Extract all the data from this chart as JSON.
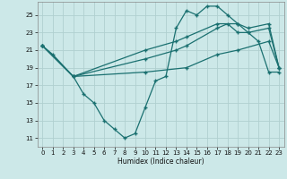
{
  "title": "",
  "xlabel": "Humidex (Indice chaleur)",
  "xlim": [
    -0.5,
    23.5
  ],
  "ylim": [
    10,
    26.5
  ],
  "yticks": [
    11,
    13,
    15,
    17,
    19,
    21,
    23,
    25
  ],
  "xticks": [
    0,
    1,
    2,
    3,
    4,
    5,
    6,
    7,
    8,
    9,
    10,
    11,
    12,
    13,
    14,
    15,
    16,
    17,
    18,
    19,
    20,
    21,
    22,
    23
  ],
  "bg_color": "#cce8e8",
  "line_color": "#1a7070",
  "grid_color": "#b0d0d0",
  "lines": [
    {
      "x": [
        0,
        1,
        3,
        4,
        5,
        6,
        7,
        8,
        9,
        10,
        11,
        12,
        13,
        14,
        15,
        16,
        17,
        18,
        19,
        20,
        21,
        22,
        23
      ],
      "y": [
        21.5,
        20.5,
        18,
        16,
        15,
        13,
        12,
        11,
        11.5,
        14.5,
        17.5,
        18,
        23.5,
        25.5,
        25,
        26,
        26,
        25,
        24,
        23,
        22,
        18.5,
        18.5
      ]
    },
    {
      "x": [
        0,
        3,
        10,
        13,
        14,
        17,
        19,
        20,
        22,
        23
      ],
      "y": [
        21.5,
        18,
        21,
        22,
        22.5,
        24,
        24,
        23.5,
        24,
        19
      ]
    },
    {
      "x": [
        0,
        3,
        10,
        13,
        14,
        17,
        18,
        19,
        20,
        22,
        23
      ],
      "y": [
        21.5,
        18,
        20,
        21,
        21.5,
        23.5,
        24,
        23,
        23,
        23.5,
        19
      ]
    },
    {
      "x": [
        0,
        3,
        10,
        14,
        17,
        19,
        22,
        23
      ],
      "y": [
        21.5,
        18,
        18.5,
        19,
        20.5,
        21,
        22,
        19
      ]
    }
  ]
}
